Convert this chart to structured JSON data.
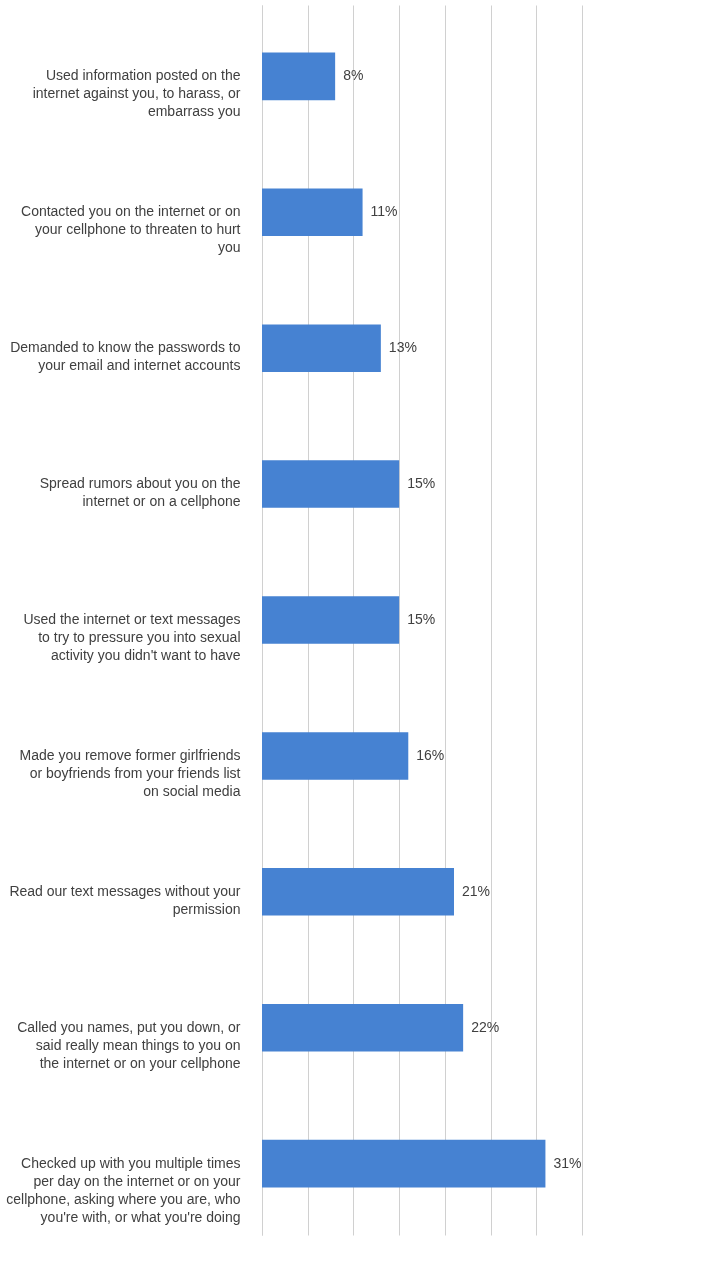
{
  "chart_data": {
    "type": "bar",
    "orientation": "horizontal",
    "categories": [
      "Used information posted on the internet against you, to harass, or embarrass you",
      "Contacted you on the internet or on your cellphone to threaten to hurt you",
      "Demanded to know the passwords to your email and internet accounts",
      "Spread rumors about you on the internet or on a cellphone",
      "Used the internet or text messages to try to pressure you into sexual activity you didn't want to have",
      "Made you remove former girlfriends or boyfriends from your friends list on social media",
      "Read our text messages without your permission",
      "Called you names, put you down, or said really mean things to you on the internet or on your cellphone",
      "Checked up with you multiple times per day on the internet or on your cellphone, asking where you are, who you're with, or what you're doing"
    ],
    "values": [
      8,
      11,
      13,
      15,
      15,
      16,
      21,
      22,
      31
    ],
    "value_labels": [
      "8%",
      "11%",
      "13%",
      "15%",
      "15%",
      "16%",
      "21%",
      "22%",
      "31%"
    ],
    "color": "#4682d2",
    "xlim": [
      0,
      35
    ],
    "xticks": [
      {
        "value": 0,
        "label": null
      },
      {
        "value": 5,
        "label": null
      },
      {
        "value": 10,
        "label": null
      },
      {
        "value": 15,
        "label": null
      },
      {
        "value": 20,
        "label": null
      },
      {
        "value": 25,
        "label": null
      },
      {
        "value": 30,
        "label": null
      },
      {
        "value": 35,
        "label": null
      }
    ],
    "grid": "x",
    "tick_labels": "y"
  }
}
